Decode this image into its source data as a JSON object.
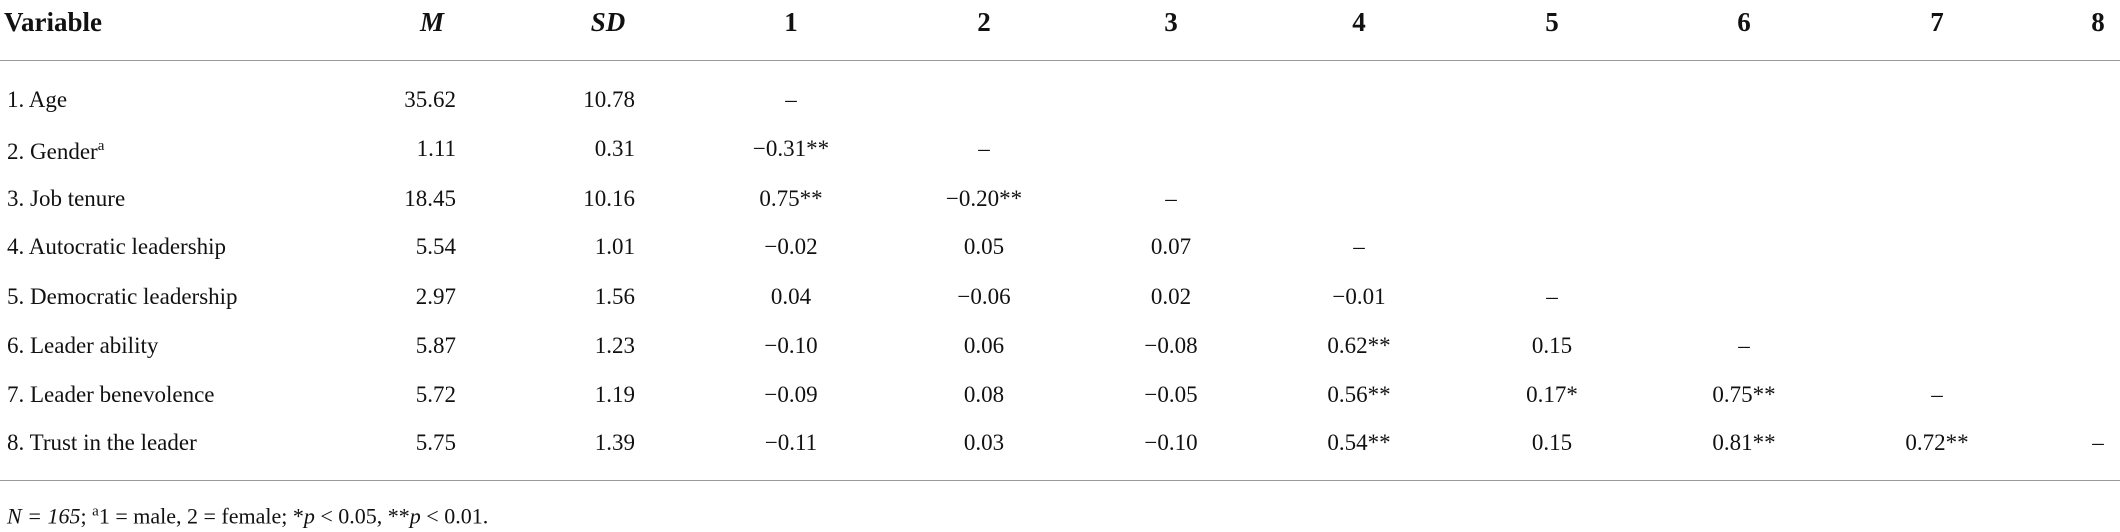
{
  "table": {
    "header": [
      "Variable",
      "M",
      "SD",
      "1",
      "2",
      "3",
      "4",
      "5",
      "6",
      "7",
      "8"
    ],
    "rows": [
      {
        "label": "1. Age",
        "m": "35.62",
        "sd": "10.78",
        "cells": [
          "–"
        ]
      },
      {
        "label": "2. Gender",
        "label_sup": "a",
        "m": "1.11",
        "sd": "0.31",
        "cells": [
          "−0.31**",
          "–"
        ]
      },
      {
        "label": "3. Job tenure",
        "m": "18.45",
        "sd": "10.16",
        "cells": [
          "0.75**",
          "−0.20**",
          "–"
        ]
      },
      {
        "label": "4. Autocratic leadership",
        "m": "5.54",
        "sd": "1.01",
        "cells": [
          "−0.02",
          "0.05",
          "0.07",
          "–"
        ]
      },
      {
        "label": "5. Democratic leadership",
        "m": "2.97",
        "sd": "1.56",
        "cells": [
          "0.04",
          "−0.06",
          "0.02",
          "−0.01",
          "–"
        ]
      },
      {
        "label": "6. Leader ability",
        "m": "5.87",
        "sd": "1.23",
        "cells": [
          "−0.10",
          "0.06",
          "−0.08",
          "0.62**",
          "0.15",
          "–"
        ]
      },
      {
        "label": "7. Leader benevolence",
        "m": "5.72",
        "sd": "1.19",
        "cells": [
          "−0.09",
          "0.08",
          "−0.05",
          "0.56**",
          "0.17*",
          "0.75**",
          "–"
        ]
      },
      {
        "label": "8. Trust in the leader",
        "m": "5.75",
        "sd": "1.39",
        "cells": [
          "−0.11",
          "0.03",
          "−0.10",
          "0.54**",
          "0.15",
          "0.81**",
          "0.72**",
          "–"
        ]
      }
    ],
    "footnote": [
      {
        "text": "N = 165",
        "style": "italic"
      },
      {
        "text": "; ",
        "style": "normal"
      },
      {
        "text": "a",
        "style": "sup"
      },
      {
        "text": "1 = male, 2 = female; *",
        "style": "normal"
      },
      {
        "text": "p",
        "style": "italic"
      },
      {
        "text": " < 0.05, **",
        "style": "normal"
      },
      {
        "text": "p",
        "style": "italic"
      },
      {
        "text": " < 0.01.",
        "style": "normal"
      }
    ]
  }
}
